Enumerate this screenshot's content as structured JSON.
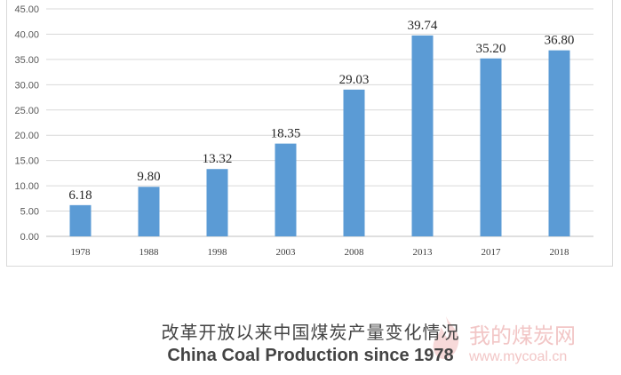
{
  "chart_data": {
    "type": "bar",
    "categories": [
      "1978",
      "1988",
      "1998",
      "2003",
      "2008",
      "2013",
      "2017",
      "2018"
    ],
    "values": [
      6.18,
      9.8,
      13.32,
      18.35,
      29.03,
      39.74,
      35.2,
      36.8
    ],
    "value_labels": [
      "6.18",
      "9.80",
      "13.32",
      "18.35",
      "29.03",
      "39.74",
      "35.20",
      "36.80"
    ],
    "y_ticks": [
      "0.00",
      "5.00",
      "10.00",
      "15.00",
      "20.00",
      "25.00",
      "30.00",
      "35.00",
      "40.00",
      "45.00"
    ],
    "ylim": [
      0,
      45
    ],
    "grid": true,
    "bar_color": "#5b9bd5"
  },
  "caption": {
    "chinese": "改革开放以来中国煤炭产量变化情况",
    "english": "China Coal Production  since 1978"
  },
  "watermark": {
    "name": "我的煤炭网",
    "url": "www.mycoal.cn",
    "color": "#f2c6c6"
  }
}
